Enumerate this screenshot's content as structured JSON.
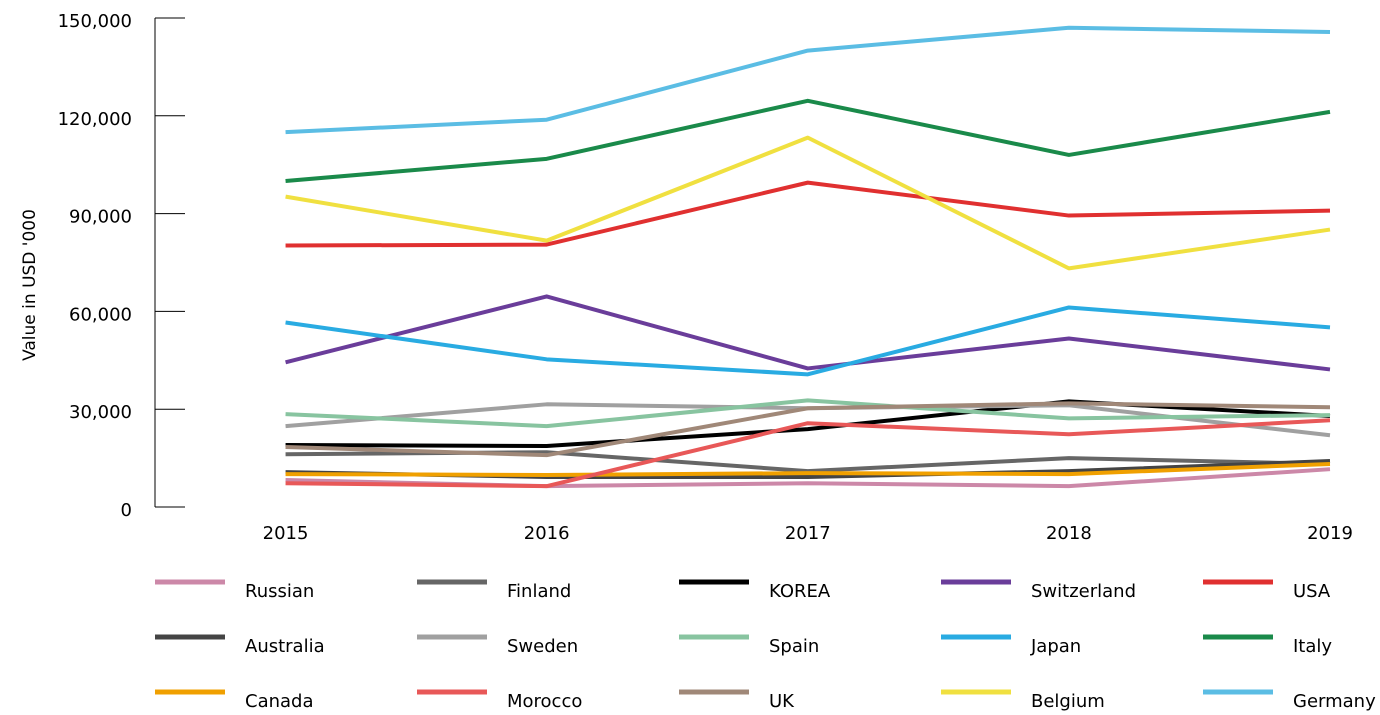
{
  "chart_data": {
    "type": "line",
    "y_label": "Value in USD '000",
    "x": [
      2015,
      2016,
      2017,
      2018,
      2019
    ],
    "xlim": [
      2014.5,
      2019
    ],
    "xticks": [
      2015,
      2016,
      2017,
      2018,
      2019
    ],
    "ylim": [
      0,
      150000
    ],
    "yticks": [
      0,
      {
        "value": 30000,
        "label": "30,000"
      },
      {
        "value": 60000,
        "label": "60,000"
      },
      {
        "value": 90000,
        "label": "90,000"
      },
      {
        "value": 120000,
        "label": "120,000"
      },
      {
        "value": 150000,
        "label": "150,000"
      }
    ],
    "series": [
      {
        "name": "Russian",
        "color": "#cc88a8",
        "values": [
          8300,
          6400,
          7300,
          6400,
          11600
        ]
      },
      {
        "name": "Finland",
        "color": "#666666",
        "values": [
          16200,
          16800,
          11000,
          15000,
          13200
        ]
      },
      {
        "name": "KOREA",
        "color": "#000000",
        "values": [
          19000,
          18700,
          23900,
          32400,
          27900
        ]
      },
      {
        "name": "Switzerland",
        "color": "#6a3d9a",
        "values": [
          44400,
          64600,
          42500,
          51700,
          42200
        ]
      },
      {
        "name": "USA",
        "color": "#e03030",
        "values": [
          80200,
          80500,
          99500,
          89400,
          90900
        ]
      },
      {
        "name": "Australia",
        "color": "#444444",
        "values": [
          10700,
          9200,
          9200,
          11000,
          14100
        ]
      },
      {
        "name": "Sweden",
        "color": "#a0a0a0",
        "values": [
          24800,
          31500,
          30300,
          31200,
          22000
        ]
      },
      {
        "name": "Spain",
        "color": "#88c4a0",
        "values": [
          28500,
          24800,
          32700,
          27200,
          28200
        ]
      },
      {
        "name": "Japan",
        "color": "#29abe2",
        "values": [
          56600,
          45300,
          40700,
          61200,
          55100
        ]
      },
      {
        "name": "Italy",
        "color": "#1a8a4a",
        "values": [
          100000,
          106800,
          124600,
          108000,
          121200
        ]
      },
      {
        "name": "Canada",
        "color": "#f0a000",
        "values": [
          10100,
          9800,
          10400,
          10100,
          13200
        ]
      },
      {
        "name": "Morocco",
        "color": "#e85858",
        "values": [
          7300,
          6400,
          25700,
          22300,
          26600
        ]
      },
      {
        "name": "UK",
        "color": "#a08878",
        "values": [
          18400,
          15900,
          30300,
          31800,
          30600
        ]
      },
      {
        "name": "Belgium",
        "color": "#f0e040",
        "values": [
          95200,
          81700,
          113300,
          73200,
          85100
        ]
      },
      {
        "name": "Germany",
        "color": "#5bbde4",
        "values": [
          115000,
          118800,
          140000,
          147000,
          145700
        ]
      }
    ]
  }
}
